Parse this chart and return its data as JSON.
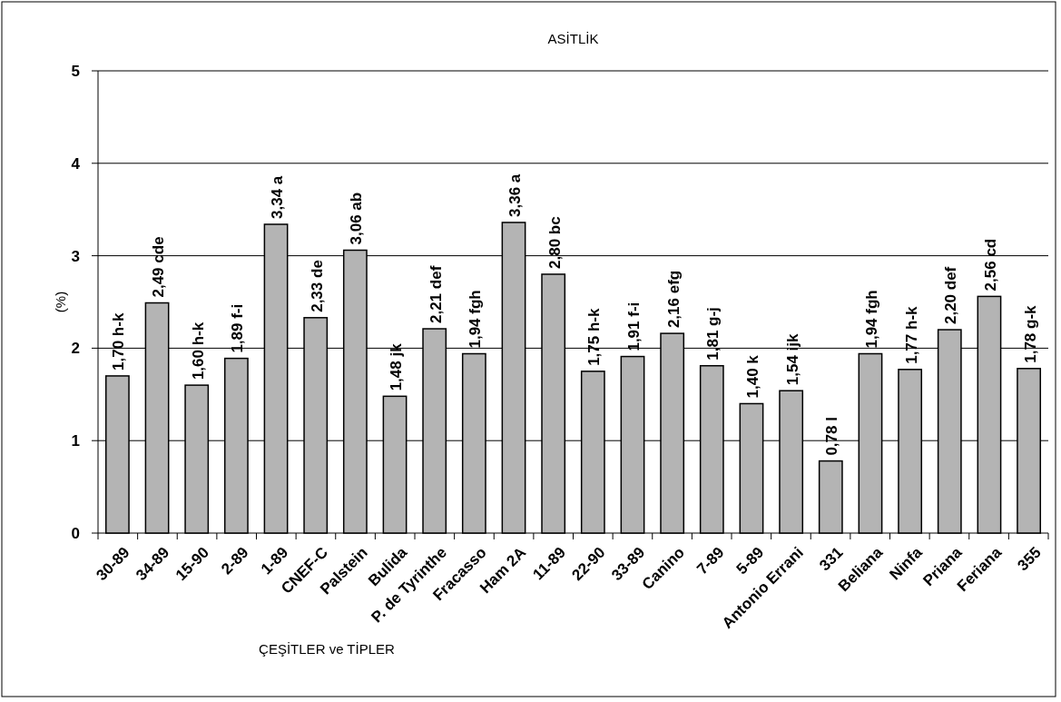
{
  "chart_data": {
    "type": "bar",
    "title": "ASİTLİK",
    "xlabel": "ÇEŞİTLER ve TİPLER",
    "ylabel": "(%)",
    "categories": [
      "30-89",
      "34-89",
      "15-90",
      "2-89",
      "1-89",
      "CNEF-C",
      "Palstein",
      "Bulida",
      "P. de Tyrinthe",
      "Fracasso",
      "Ham 2A",
      "11-89",
      "22-90",
      "33-89",
      "Canino",
      "7-89",
      "5-89",
      "Antonio Errani",
      "331",
      "Beliana",
      "Ninfa",
      "Priana",
      "Feriana",
      "355"
    ],
    "values": [
      1.7,
      2.49,
      1.6,
      1.89,
      3.34,
      2.33,
      3.06,
      1.48,
      2.21,
      1.94,
      3.36,
      2.8,
      1.75,
      1.91,
      2.16,
      1.81,
      1.4,
      1.54,
      0.78,
      1.94,
      1.77,
      2.2,
      2.56,
      1.78
    ],
    "value_labels": [
      "1,70 h-k",
      "2,49 cde",
      "1,60 h-k",
      "1,89 f-i",
      "3,34 a",
      "2,33 de",
      "3,06 ab",
      "1,48 jk",
      "2,21 def",
      "1,94 fgh",
      "3,36 a",
      "2,80 bc",
      "1,75 h-k",
      "1,91 f-i",
      "2,16 efg",
      "1,81 g-j",
      "1,40 k",
      "1,54 ijk",
      "0,78 l",
      "1,94 fgh",
      "1,77 h-k",
      "2,20 def",
      "2,56 cd",
      "1,78 g-k"
    ],
    "color": "#b4b4b4",
    "ylim": [
      0,
      5
    ],
    "yticks": [
      0,
      1,
      2,
      3,
      4,
      5
    ],
    "grid": "y"
  }
}
